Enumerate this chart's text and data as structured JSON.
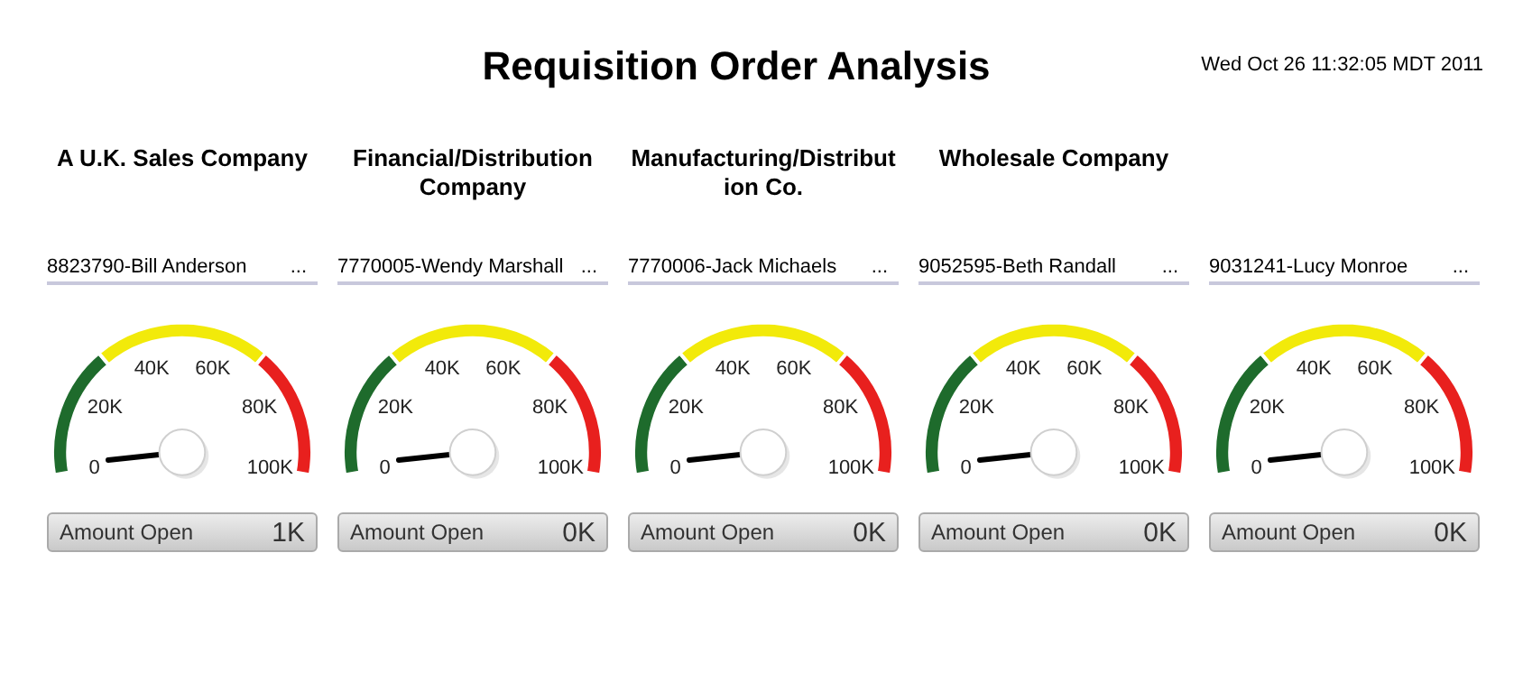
{
  "chart_data": [
    {
      "type": "other",
      "title": "Requisition Order Analysis",
      "annotations": [
        "Wed Oct 26 11:32:05 MDT 2011"
      ]
    },
    {
      "type": "donut",
      "title": "A U.K. Sales Company",
      "subtitle": "8823790-Bill Anderson",
      "categories": [
        null,
        null,
        null
      ],
      "values": [
        30,
        40,
        30
      ],
      "colors": [
        "#1e6b2c",
        "#f2ea0a",
        "#e8201e"
      ],
      "annotations": [
        "0",
        "20K",
        "40K",
        "60K",
        "80K",
        "100K",
        "...",
        "Amount Open",
        "1K"
      ]
    },
    {
      "type": "donut",
      "title": "Financial/Distribution Company",
      "subtitle": "7770005-Wendy Marshall",
      "categories": [
        null,
        null,
        null
      ],
      "values": [
        30,
        40,
        30
      ],
      "colors": [
        "#1e6b2c",
        "#f2ea0a",
        "#e8201e"
      ],
      "annotations": [
        "0",
        "20K",
        "40K",
        "60K",
        "80K",
        "100K",
        "...",
        "Amount Open",
        "0K"
      ]
    },
    {
      "type": "donut",
      "title": "Manufacturing/Distribution Co.",
      "subtitle": "7770006-Jack Michaels",
      "categories": [
        null,
        null,
        null
      ],
      "values": [
        30,
        40,
        30
      ],
      "colors": [
        "#1e6b2c",
        "#f2ea0a",
        "#e8201e"
      ],
      "annotations": [
        "0",
        "20K",
        "40K",
        "60K",
        "80K",
        "100K",
        "...",
        "Amount Open",
        "0K"
      ]
    },
    {
      "type": "donut",
      "title": "Wholesale Company",
      "subtitle": "9052595-Beth Randall",
      "categories": [
        null,
        null,
        null
      ],
      "values": [
        30,
        40,
        30
      ],
      "colors": [
        "#1e6b2c",
        "#f2ea0a",
        "#e8201e"
      ],
      "annotations": [
        "0",
        "20K",
        "40K",
        "60K",
        "80K",
        "100K",
        "...",
        "Amount Open",
        "0K"
      ]
    },
    {
      "type": "donut",
      "subtitle": "9031241-Lucy Monroe",
      "categories": [
        null,
        null,
        null
      ],
      "values": [
        30,
        40,
        30
      ],
      "colors": [
        "#1e6b2c",
        "#f2ea0a",
        "#e8201e"
      ],
      "annotations": [
        "0",
        "20K",
        "40K",
        "60K",
        "80K",
        "100K",
        "...",
        "Amount Open",
        "0K"
      ]
    }
  ]
}
